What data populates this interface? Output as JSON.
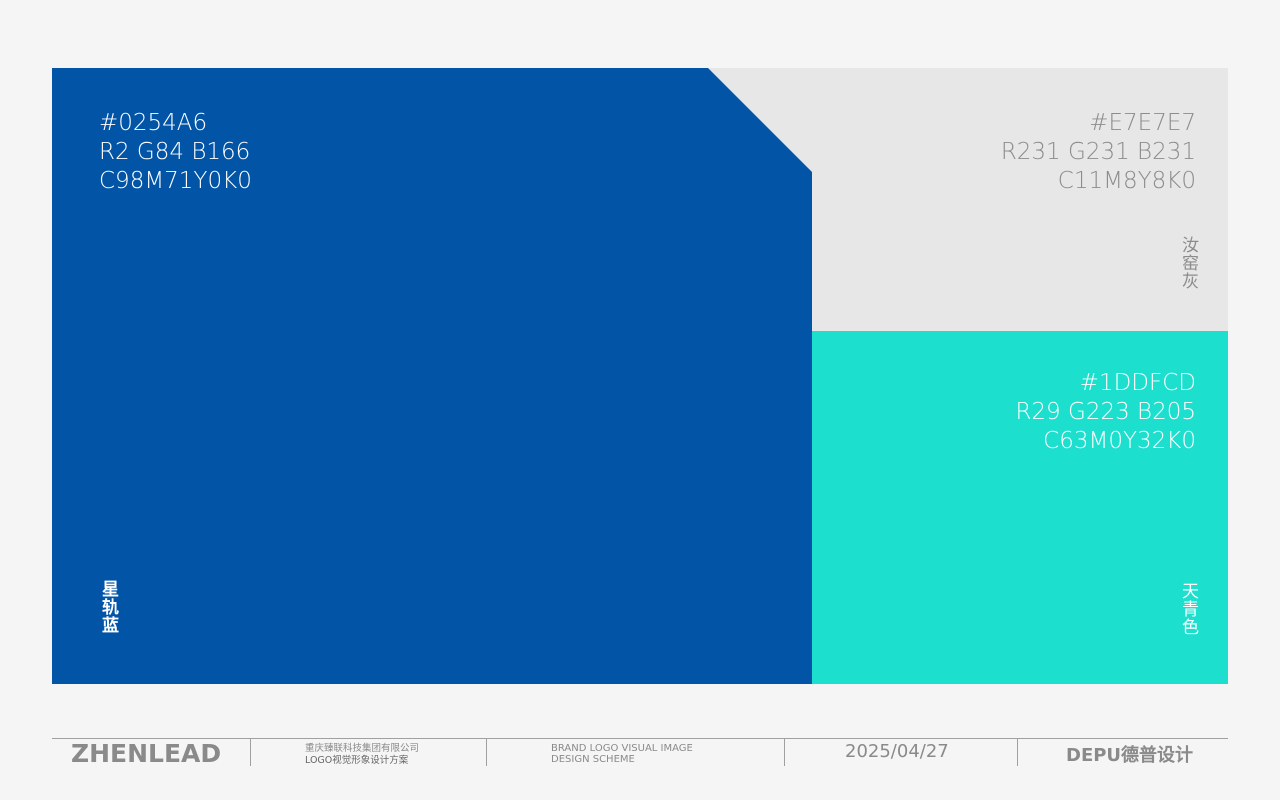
{
  "colors": [
    {
      "hex": "#0254A6",
      "rgb": "R2 G84 B166",
      "cmyk": "C98M71Y0K0",
      "name": "星轨蓝"
    },
    {
      "hex": "#E7E7E7",
      "rgb": "R231 G231 B231",
      "cmyk": "C11M8Y8K0",
      "name": "汝窑灰"
    },
    {
      "hex": "#1DDFCD",
      "rgb": "R29 G223 B205",
      "cmyk": "C63M0Y32K0",
      "name": "天青色"
    }
  ],
  "footer": {
    "brand": "ZHENLEAD",
    "company": "重庆臻联科技集团有限公司",
    "project": "LOGO视觉形象设计方案",
    "scheme_line1": "BRAND LOGO VISUAL IMAGE",
    "scheme_line2": "DESIGN SCHEME",
    "date": "2025/04/27",
    "studio": "DEPU德普设计"
  }
}
